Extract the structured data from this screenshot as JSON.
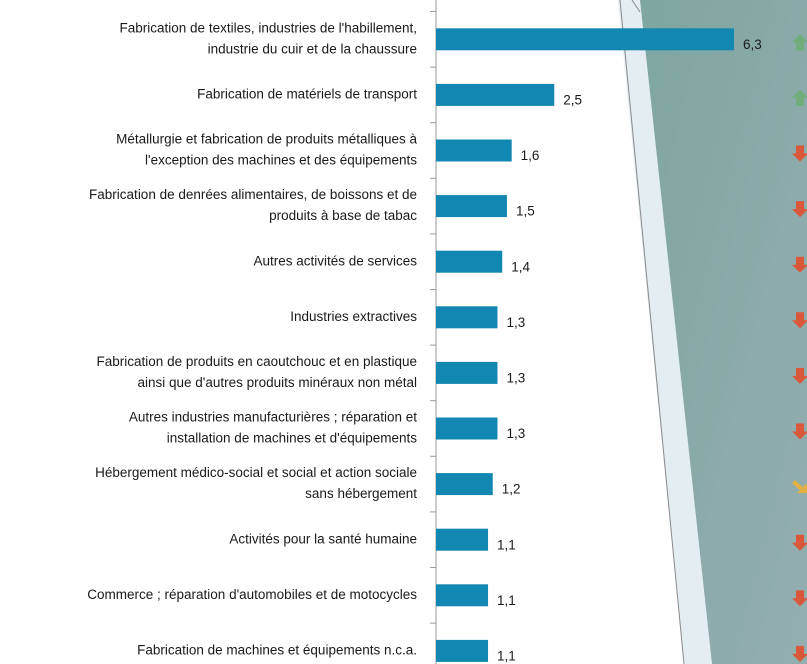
{
  "chart_data": {
    "type": "bar",
    "orientation": "horizontal",
    "categories": [
      [
        "Fabrication de textiles, industries de l'habillement,",
        "industrie du cuir et de la chaussure"
      ],
      [
        "Fabrication de matériels de transport"
      ],
      [
        "Métallurgie et fabrication de produits métalliques à",
        "l'exception des machines et des équipements"
      ],
      [
        "Fabrication de denrées alimentaires, de boissons et de",
        "produits à base de tabac"
      ],
      [
        "Autres activités de services"
      ],
      [
        "Industries extractives"
      ],
      [
        "Fabrication de produits en caoutchouc et en plastique",
        "ainsi que d'autres produits minéraux non métal"
      ],
      [
        "Autres industries manufacturières ; réparation et",
        "installation de machines et d'équipements"
      ],
      [
        "Hébergement médico-social et social et action sociale",
        "sans hébergement"
      ],
      [
        "Activités pour la santé humaine"
      ],
      [
        "Commerce ; réparation d'automobiles et de motocycles"
      ],
      [
        "Fabrication de machines et équipements n.c.a."
      ]
    ],
    "values": [
      6.3,
      2.5,
      1.6,
      1.5,
      1.4,
      1.3,
      1.3,
      1.3,
      1.2,
      1.1,
      1.1,
      1.1
    ],
    "value_labels": [
      "6,3",
      "2,5",
      "1,6",
      "1,5",
      "1,4",
      "1,3",
      "1,3",
      "1,3",
      "1,2",
      "1,1",
      "1,1",
      "1,1"
    ],
    "color": "#1287b1"
  }
}
